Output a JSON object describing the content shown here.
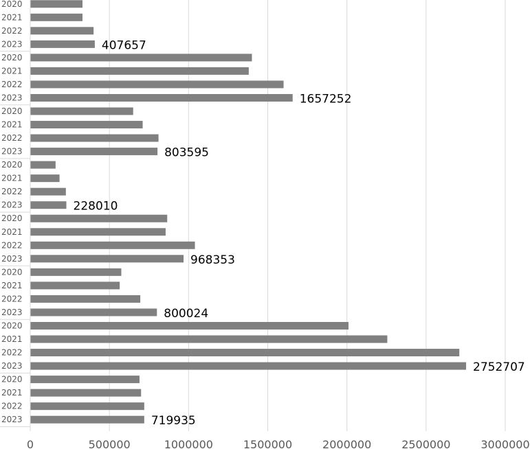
{
  "chart_data": {
    "type": "bar",
    "orientation": "horizontal",
    "grid": true,
    "xlim": [
      0,
      3000000
    ],
    "x_ticks": [
      0,
      500000,
      1000000,
      1500000,
      2000000,
      2500000,
      3000000
    ],
    "x_tick_labels": [
      "0",
      "500000",
      "1000000",
      "1500000",
      "2000000",
      "2500000",
      "3000000"
    ],
    "bar_color": "#808080",
    "categories": [
      "2020",
      "2021",
      "2022",
      "2023",
      "2020",
      "2021",
      "2022",
      "2023",
      "2020",
      "2021",
      "2022",
      "2023",
      "2020",
      "2021",
      "2022",
      "2023",
      "2020",
      "2021",
      "2022",
      "2023",
      "2020",
      "2021",
      "2022",
      "2023",
      "2020",
      "2021",
      "2022",
      "2023",
      "2020",
      "2021",
      "2022",
      "2023"
    ],
    "values": [
      330000,
      330000,
      400000,
      407657,
      1400000,
      1380000,
      1600000,
      1657252,
      650000,
      710000,
      810000,
      803595,
      160000,
      185000,
      225000,
      228010,
      865000,
      855000,
      1040000,
      968353,
      575000,
      565000,
      695000,
      800024,
      2010000,
      2255000,
      2710000,
      2752707,
      690000,
      700000,
      720000,
      719935
    ],
    "data_labels": [
      null,
      null,
      null,
      "407657",
      null,
      null,
      null,
      "1657252",
      null,
      null,
      null,
      "803595",
      null,
      null,
      null,
      "228010",
      null,
      null,
      null,
      "968353",
      null,
      null,
      null,
      "800024",
      null,
      null,
      null,
      "2752707",
      null,
      null,
      null,
      "719935"
    ]
  }
}
